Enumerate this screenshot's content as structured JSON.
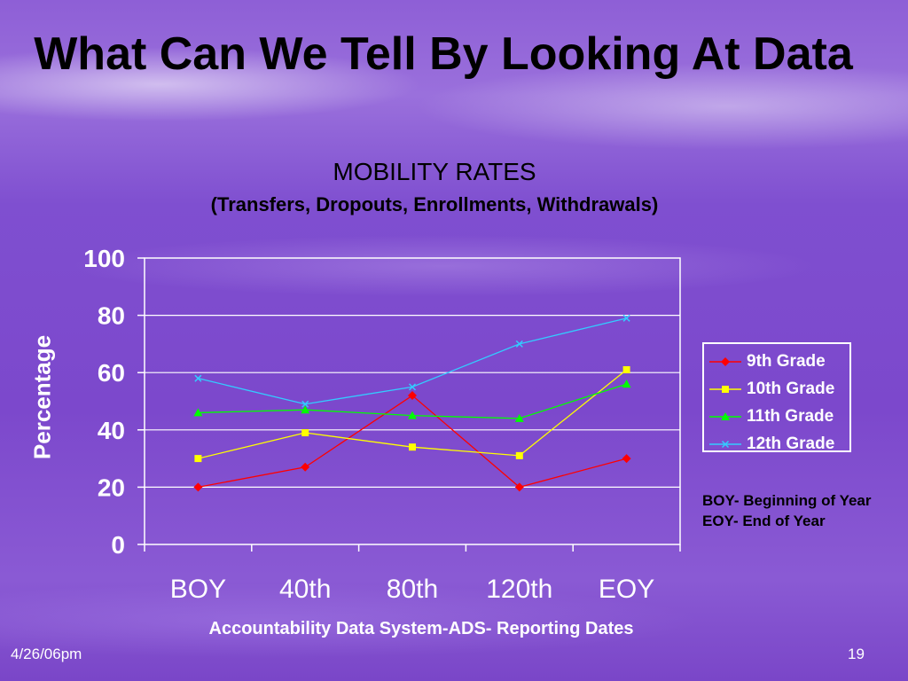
{
  "slide": {
    "title": "What Can We Tell By Looking At Data",
    "notes": [
      "BOY- Beginning of Year",
      "EOY- End of Year"
    ],
    "footer_date": "4/26/06pm",
    "page_number": "19"
  },
  "chart_data": {
    "type": "line",
    "title": "MOBILITY RATES",
    "subtitle": "(Transfers, Dropouts, Enrollments, Withdrawals)",
    "xlabel": "Accountability Data System-ADS- Reporting Dates",
    "ylabel": "Percentage",
    "categories": [
      "BOY",
      "40th",
      "80th",
      "120th",
      "EOY"
    ],
    "ylim": [
      0,
      100
    ],
    "yticks": [
      "0",
      "20",
      "40",
      "60",
      "80",
      "100"
    ],
    "grid": true,
    "legend_position": "right",
    "series": [
      {
        "name": "9th Grade",
        "color": "#ff0000",
        "marker": "diamond",
        "values": [
          20,
          27,
          52,
          20,
          30
        ]
      },
      {
        "name": "10th Grade",
        "color": "#ffff00",
        "marker": "square",
        "values": [
          30,
          39,
          34,
          31,
          61
        ]
      },
      {
        "name": "11th Grade",
        "color": "#00ff00",
        "marker": "triangle",
        "values": [
          46,
          47,
          45,
          44,
          56
        ]
      },
      {
        "name": "12th Grade",
        "color": "#33ccff",
        "marker": "x",
        "values": [
          58,
          49,
          55,
          70,
          79
        ]
      }
    ]
  }
}
